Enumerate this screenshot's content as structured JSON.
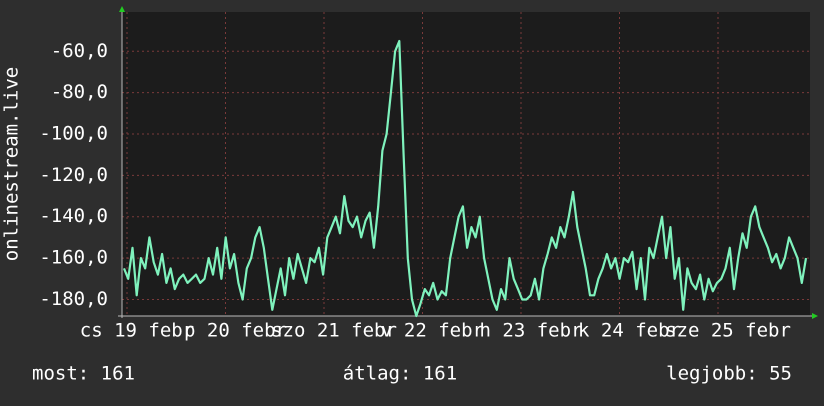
{
  "chart_data": {
    "type": "line",
    "y_label": "onlinestream.live",
    "x_labels": [
      "cs 19 febr",
      "p 20 febr",
      "szo 21 febr",
      "v 22 febr",
      "h 23 febr",
      "k 24 febr",
      "sze 25 febr"
    ],
    "series": [
      {
        "color": "#7ff2bd",
        "values": [
          -165,
          -170,
          -155,
          -178,
          -160,
          -165,
          -150,
          -162,
          -168,
          -158,
          -172,
          -165,
          -175,
          -170,
          -168,
          -172,
          -170,
          -168,
          -172,
          -170,
          -160,
          -168,
          -155,
          -170,
          -150,
          -165,
          -158,
          -172,
          -180,
          -165,
          -160,
          -150,
          -145,
          -155,
          -170,
          -185,
          -175,
          -165,
          -178,
          -160,
          -170,
          -158,
          -165,
          -172,
          -160,
          -162,
          -155,
          -168,
          -150,
          -145,
          -140,
          -148,
          -130,
          -142,
          -145,
          -140,
          -150,
          -142,
          -138,
          -155,
          -135,
          -108,
          -100,
          -80,
          -60,
          -55,
          -110,
          -160,
          -180,
          -188,
          -182,
          -175,
          -178,
          -172,
          -180,
          -176,
          -178,
          -160,
          -150,
          -140,
          -135,
          -155,
          -145,
          -150,
          -140,
          -160,
          -170,
          -180,
          -185,
          -175,
          -180,
          -160,
          -170,
          -175,
          -180,
          -180,
          -178,
          -170,
          -180,
          -165,
          -158,
          -150,
          -155,
          -145,
          -150,
          -140,
          -128,
          -145,
          -155,
          -165,
          -178,
          -178,
          -170,
          -165,
          -158,
          -165,
          -160,
          -170,
          -160,
          -162,
          -157,
          -175,
          -160,
          -180,
          -155,
          -160,
          -150,
          -140,
          -160,
          -145,
          -170,
          -160,
          -185,
          -165,
          -172,
          -175,
          -168,
          -180,
          -170,
          -176,
          -172,
          -170,
          -165,
          -155,
          -175,
          -160,
          -148,
          -155,
          -140,
          -135,
          -145,
          -150,
          -155,
          -162,
          -158,
          -165,
          -160,
          -150,
          -155,
          -160,
          -172,
          -160
        ]
      }
    ],
    "ylim": [
      -188,
      -41
    ],
    "yticks": [
      {
        "value": -60,
        "label": "-60,0"
      },
      {
        "value": -80,
        "label": "-80,0"
      },
      {
        "value": -100,
        "label": "-100,0"
      },
      {
        "value": -120,
        "label": "-120,0"
      },
      {
        "value": -140,
        "label": "-140,0"
      },
      {
        "value": -160,
        "label": "-160,0"
      },
      {
        "value": -180,
        "label": "-180,0"
      }
    ],
    "grid": true,
    "footer": [
      "most: 161",
      "átlag: 161",
      "legjobb: 55"
    ]
  }
}
